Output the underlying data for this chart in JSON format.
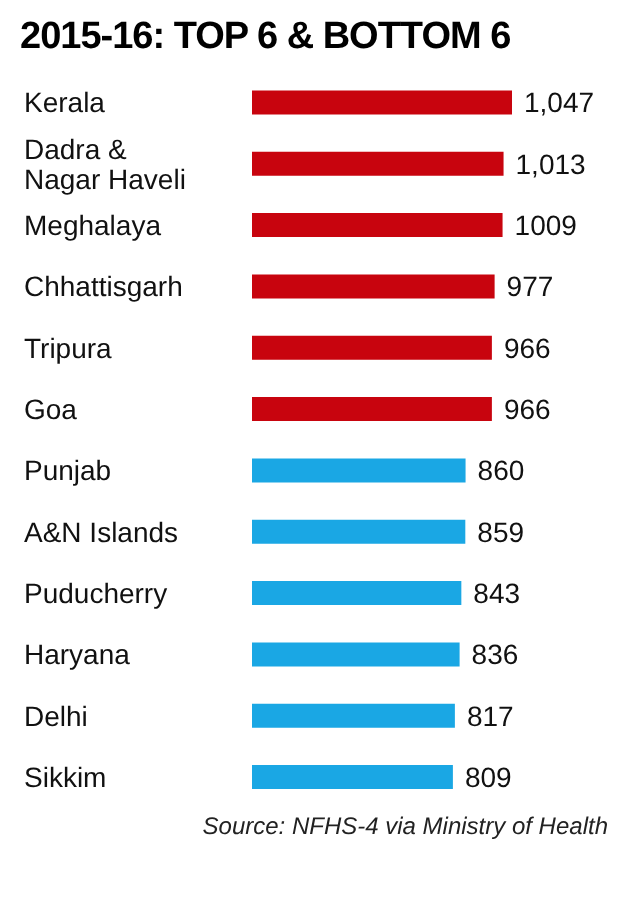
{
  "chart_data": {
    "type": "bar",
    "orientation": "horizontal",
    "title": "2015-16: TOP 6 & BOTTOM 6",
    "categories": [
      "Kerala",
      "Dadra & Nagar Haveli",
      "Meghalaya",
      "Chhattisgarh",
      "Tripura",
      "Goa",
      "Punjab",
      "A&N Islands",
      "Puducherry",
      "Haryana",
      "Delhi",
      "Sikkim"
    ],
    "values": [
      1047,
      1013,
      1009,
      977,
      966,
      966,
      860,
      859,
      843,
      836,
      817,
      809
    ],
    "value_labels": [
      "1,047",
      "1,013",
      "1009",
      "977",
      "966",
      "966",
      "860",
      "859",
      "843",
      "836",
      "817",
      "809"
    ],
    "colors": [
      "#c8040e",
      "#c8040e",
      "#c8040e",
      "#c8040e",
      "#c8040e",
      "#c8040e",
      "#1aa7e4",
      "#1aa7e4",
      "#1aa7e4",
      "#1aa7e4",
      "#1aa7e4",
      "#1aa7e4"
    ],
    "annotations": [
      "Source: NFHS-4 via Ministry of Health"
    ]
  }
}
